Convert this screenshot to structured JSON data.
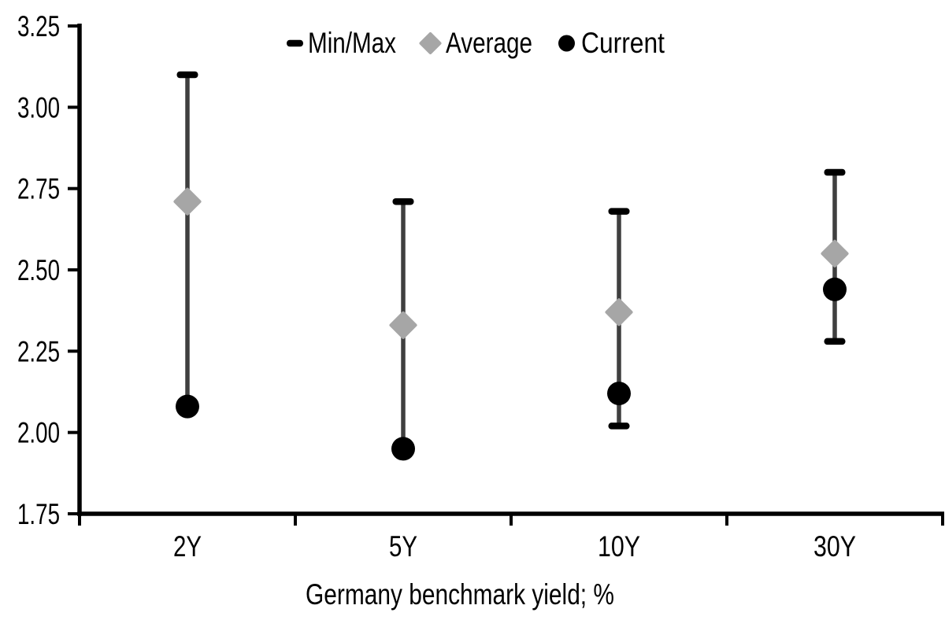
{
  "chart_data": {
    "type": "scatter",
    "subtype": "min-max-range-with-markers",
    "title": "",
    "xlabel": "Germany benchmark yield; %",
    "ylabel": "",
    "categories": [
      "2Y",
      "5Y",
      "10Y",
      "30Y"
    ],
    "series": [
      {
        "name": "Min/Max",
        "marker": "dash-cap",
        "cap_color": "#000000",
        "whisker_color": "#3f3f3f",
        "min": [
          2.08,
          1.95,
          2.02,
          2.28
        ],
        "max": [
          3.1,
          2.71,
          2.68,
          2.8
        ],
        "min_caps_visible": [
          false,
          false,
          true,
          true
        ]
      },
      {
        "name": "Average",
        "marker": "diamond",
        "color": "#a6a6a6",
        "values": [
          2.71,
          2.33,
          2.37,
          2.55
        ]
      },
      {
        "name": "Current",
        "marker": "circle",
        "color": "#000000",
        "values": [
          2.08,
          1.95,
          2.12,
          2.44
        ]
      }
    ],
    "ylim": [
      1.75,
      3.25
    ],
    "ytick_step": 0.25,
    "ytick_labels": [
      "1.75",
      "2.00",
      "2.25",
      "2.50",
      "2.75",
      "3.00",
      "3.25"
    ],
    "xtick_labels": [
      "2Y",
      "5Y",
      "10Y",
      "30Y"
    ],
    "legend_position": "top-center",
    "grid": false,
    "axis_color": "#000000",
    "text_color": "#000000",
    "background_color": "#ffffff"
  }
}
